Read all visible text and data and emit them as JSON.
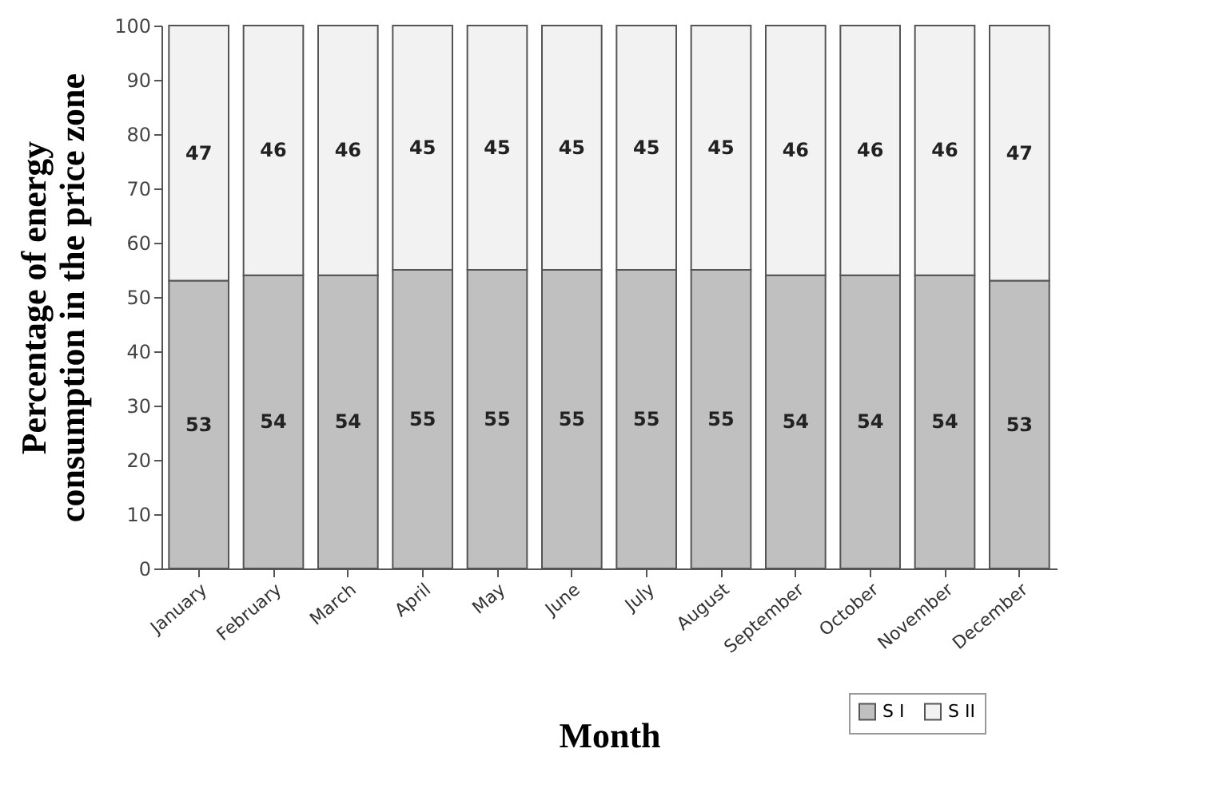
{
  "chart_data": {
    "type": "bar",
    "stacked": true,
    "xlabel": "Month",
    "ylabel": "Percentage of energy consumption in the price zone",
    "categories": [
      "January",
      "February",
      "March",
      "April",
      "May",
      "June",
      "July",
      "August",
      "September",
      "October",
      "November",
      "December"
    ],
    "series": [
      {
        "name": "S I",
        "color": "#c0c0c0",
        "values": [
          53,
          54,
          54,
          55,
          55,
          55,
          55,
          55,
          54,
          54,
          54,
          53
        ]
      },
      {
        "name": "S II",
        "color": "#f2f2f2",
        "values": [
          47,
          46,
          46,
          45,
          45,
          45,
          45,
          45,
          46,
          46,
          46,
          47
        ]
      }
    ],
    "ylim": [
      0,
      100
    ],
    "yticks": [
      0,
      10,
      20,
      30,
      40,
      50,
      60,
      70,
      80,
      90,
      100
    ],
    "data_labels": true,
    "legend": "bottom right",
    "grid": false
  }
}
